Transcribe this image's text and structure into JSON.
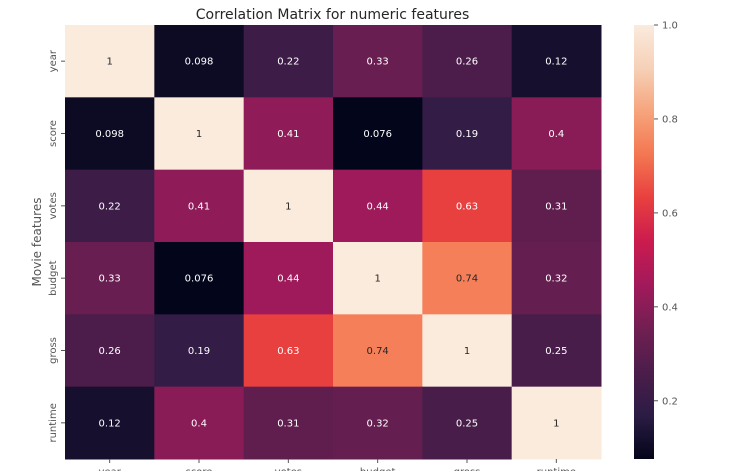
{
  "chart_data": {
    "type": "heatmap",
    "title": "Correlation Matrix for numeric features",
    "xlabel": "",
    "ylabel": "Movie features",
    "x_categories": [
      "year",
      "score",
      "votes",
      "budget",
      "gross",
      "runtime"
    ],
    "y_categories": [
      "year",
      "score",
      "votes",
      "budget",
      "gross",
      "runtime"
    ],
    "values": [
      [
        1,
        0.098,
        0.22,
        0.33,
        0.26,
        0.12
      ],
      [
        0.098,
        1,
        0.41,
        0.076,
        0.19,
        0.4
      ],
      [
        0.22,
        0.41,
        1,
        0.44,
        0.63,
        0.31
      ],
      [
        0.33,
        0.076,
        0.44,
        1,
        0.74,
        0.32
      ],
      [
        0.26,
        0.19,
        0.63,
        0.74,
        1,
        0.25
      ],
      [
        0.12,
        0.4,
        0.31,
        0.32,
        0.25,
        1
      ]
    ],
    "cell_labels": [
      [
        "1",
        "0.098",
        "0.22",
        "0.33",
        "0.26",
        "0.12"
      ],
      [
        "0.098",
        "1",
        "0.41",
        "0.076",
        "0.19",
        "0.4"
      ],
      [
        "0.22",
        "0.41",
        "1",
        "0.44",
        "0.63",
        "0.31"
      ],
      [
        "0.33",
        "0.076",
        "0.44",
        "1",
        "0.74",
        "0.32"
      ],
      [
        "0.26",
        "0.19",
        "0.63",
        "0.74",
        "1",
        "0.25"
      ],
      [
        "0.12",
        "0.4",
        "0.31",
        "0.32",
        "0.25",
        "1"
      ]
    ],
    "colorbar": {
      "range": [
        0.076,
        1.0
      ],
      "ticks": [
        0.2,
        0.4,
        0.6,
        0.8,
        1.0
      ],
      "tick_labels": [
        "0.2",
        "0.4",
        "0.6",
        "0.8",
        "1.0"
      ],
      "colormap": "rocket",
      "colors": [
        "#03051a",
        "#2b1c44",
        "#4c1d4b",
        "#711f52",
        "#a11a5b",
        "#cb1b4f",
        "#e83f3f",
        "#f37651",
        "#f6a47c",
        "#f6d0b7",
        "#faebdd"
      ]
    },
    "grid": false
  }
}
